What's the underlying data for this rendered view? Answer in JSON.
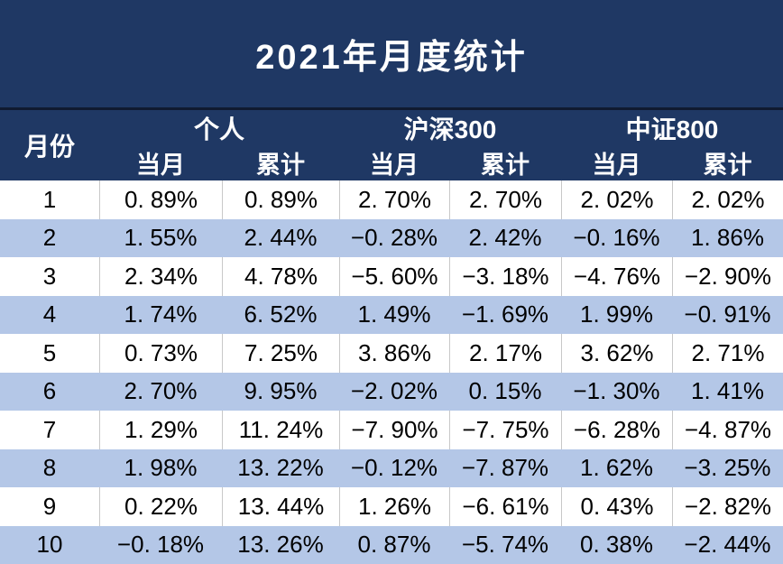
{
  "title": "2021年月度统计",
  "colors": {
    "band_navy": "#1F3864",
    "separator_line": "#101A30",
    "row_alt_blue": "#B4C7E7",
    "row_white": "#FFFFFF",
    "grid_line": "#C8C8C8",
    "header_text": "#FFFFFF",
    "cell_text": "#000000"
  },
  "table": {
    "month_header": "月份",
    "groups": [
      {
        "label": "个人"
      },
      {
        "label": "沪深300"
      },
      {
        "label": "中证800"
      }
    ],
    "sub_headers": [
      "当月",
      "累计"
    ],
    "rows": [
      {
        "month": "1",
        "values": [
          "0. 89%",
          "0. 89%",
          "2. 70%",
          "2. 70%",
          "2. 02%",
          "2. 02%"
        ]
      },
      {
        "month": "2",
        "values": [
          "1. 55%",
          "2. 44%",
          "−0. 28%",
          "2. 42%",
          "−0. 16%",
          "1. 86%"
        ]
      },
      {
        "month": "3",
        "values": [
          "2. 34%",
          "4. 78%",
          "−5. 60%",
          "−3. 18%",
          "−4. 76%",
          "−2. 90%"
        ]
      },
      {
        "month": "4",
        "values": [
          "1. 74%",
          "6. 52%",
          "1. 49%",
          "−1. 69%",
          "1. 99%",
          "−0. 91%"
        ]
      },
      {
        "month": "5",
        "values": [
          "0. 73%",
          "7. 25%",
          "3. 86%",
          "2. 17%",
          "3. 62%",
          "2. 71%"
        ]
      },
      {
        "month": "6",
        "values": [
          "2. 70%",
          "9. 95%",
          "−2. 02%",
          "0. 15%",
          "−1. 30%",
          "1. 41%"
        ]
      },
      {
        "month": "7",
        "values": [
          "1. 29%",
          "11. 24%",
          "−7. 90%",
          "−7. 75%",
          "−6. 28%",
          "−4. 87%"
        ]
      },
      {
        "month": "8",
        "values": [
          "1. 98%",
          "13. 22%",
          "−0. 12%",
          "−7. 87%",
          "1. 62%",
          "−3. 25%"
        ]
      },
      {
        "month": "9",
        "values": [
          "0. 22%",
          "13. 44%",
          "1. 26%",
          "−6. 61%",
          "0. 43%",
          "−2. 82%"
        ]
      },
      {
        "month": "10",
        "values": [
          "−0. 18%",
          "13. 26%",
          "0. 87%",
          "−5. 74%",
          "0. 38%",
          "−2. 44%"
        ]
      }
    ]
  },
  "chart_data": {
    "type": "table",
    "title": "2021年月度统计",
    "category_label": "月份",
    "categories": [
      1,
      2,
      3,
      4,
      5,
      6,
      7,
      8,
      9,
      10
    ],
    "unit": "%",
    "series": [
      {
        "name": "个人 当月",
        "values": [
          0.89,
          1.55,
          2.34,
          1.74,
          0.73,
          2.7,
          1.29,
          1.98,
          0.22,
          -0.18
        ]
      },
      {
        "name": "个人 累计",
        "values": [
          0.89,
          2.44,
          4.78,
          6.52,
          7.25,
          9.95,
          11.24,
          13.22,
          13.44,
          13.26
        ]
      },
      {
        "name": "沪深300 当月",
        "values": [
          2.7,
          -0.28,
          -5.6,
          1.49,
          3.86,
          -2.02,
          -7.9,
          -0.12,
          1.26,
          0.87
        ]
      },
      {
        "name": "沪深300 累计",
        "values": [
          2.7,
          2.42,
          -3.18,
          -1.69,
          2.17,
          0.15,
          -7.75,
          -7.87,
          -6.61,
          -5.74
        ]
      },
      {
        "name": "中证800 当月",
        "values": [
          2.02,
          -0.16,
          -4.76,
          1.99,
          3.62,
          -1.3,
          -6.28,
          1.62,
          0.43,
          0.38
        ]
      },
      {
        "name": "中证800 累计",
        "values": [
          2.02,
          1.86,
          -2.9,
          -0.91,
          2.71,
          1.41,
          -4.87,
          -3.25,
          -2.82,
          -2.44
        ]
      }
    ]
  }
}
